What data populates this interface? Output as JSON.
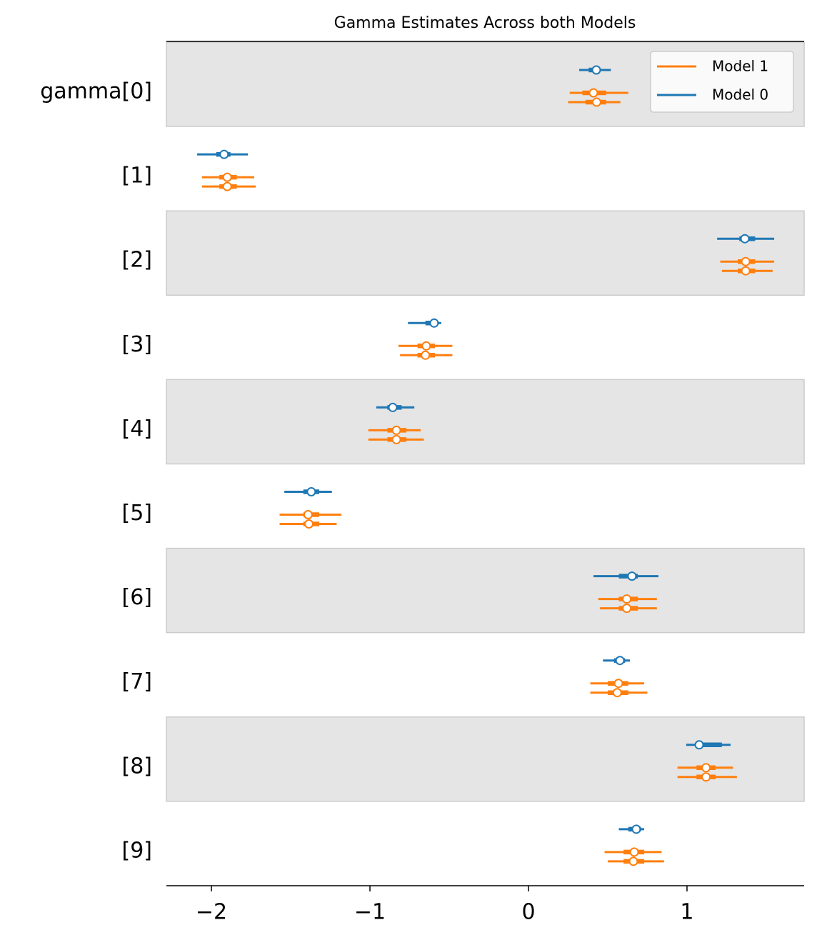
{
  "chart_data": {
    "type": "forest",
    "title": "Gamma Estimates Across both Models",
    "categories": [
      "gamma[0]",
      "[1]",
      "[2]",
      "[3]",
      "[4]",
      "[5]",
      "[6]",
      "[7]",
      "[8]",
      "[9]"
    ],
    "xlim": [
      -2.284,
      1.739
    ],
    "xticks": [
      {
        "value": -2,
        "label": "−2"
      },
      {
        "value": -1,
        "label": "−1"
      },
      0,
      1
    ],
    "legend": "upper right",
    "series": [
      {
        "name": "Model 0",
        "color": "#1f77b4",
        "chains": [
          {
            "median": [
              0.428,
              -1.92,
              1.365,
              -0.595,
              -0.856,
              -1.37,
              0.653,
              0.577,
              1.077,
              0.68
            ],
            "hdi_low": [
              0.32,
              -2.09,
              1.19,
              -0.76,
              -0.96,
              -1.54,
              0.41,
              0.47,
              0.995,
              0.57
            ],
            "hdi_high": [
              0.52,
              -1.77,
              1.55,
              -0.55,
              -0.72,
              -1.24,
              0.82,
              0.64,
              1.275,
              0.73
            ],
            "iqr_low": [
              0.38,
              -1.97,
              1.33,
              -0.65,
              -0.89,
              -1.42,
              0.57,
              0.54,
              1.06,
              0.63
            ],
            "iqr_high": [
              0.45,
              -1.88,
              1.43,
              -0.57,
              -0.8,
              -1.32,
              0.69,
              0.61,
              1.22,
              0.71
            ]
          }
        ]
      },
      {
        "name": "Model 1",
        "color": "#ff7f0e",
        "chains": [
          {
            "median": [
              0.41,
              -1.9,
              1.37,
              -0.645,
              -0.833,
              -1.39,
              0.62,
              0.568,
              1.12,
              0.667
            ],
            "hdi_low": [
              0.26,
              -2.06,
              1.21,
              -0.82,
              -1.01,
              -1.57,
              0.44,
              0.39,
              0.94,
              0.48
            ],
            "hdi_high": [
              0.63,
              -1.73,
              1.55,
              -0.48,
              -0.68,
              -1.18,
              0.81,
              0.73,
              1.29,
              0.84
            ],
            "iqr_low": [
              0.34,
              -1.95,
              1.32,
              -0.7,
              -0.89,
              -1.42,
              0.57,
              0.5,
              1.06,
              0.6
            ],
            "iqr_high": [
              0.49,
              -1.84,
              1.43,
              -0.59,
              -0.77,
              -1.32,
              0.69,
              0.63,
              1.18,
              0.73
            ]
          },
          {
            "median": [
              0.43,
              -1.9,
              1.37,
              -0.65,
              -0.833,
              -1.385,
              0.62,
              0.56,
              1.12,
              0.662
            ],
            "hdi_low": [
              0.25,
              -2.06,
              1.22,
              -0.81,
              -1.01,
              -1.57,
              0.45,
              0.39,
              0.94,
              0.5
            ],
            "hdi_high": [
              0.58,
              -1.72,
              1.54,
              -0.48,
              -0.66,
              -1.21,
              0.81,
              0.75,
              1.315,
              0.855
            ],
            "iqr_low": [
              0.36,
              -1.95,
              1.32,
              -0.7,
              -0.89,
              -1.42,
              0.57,
              0.5,
              1.06,
              0.6
            ],
            "iqr_high": [
              0.49,
              -1.84,
              1.43,
              -0.59,
              -0.77,
              -1.32,
              0.69,
              0.63,
              1.18,
              0.73
            ]
          }
        ]
      }
    ]
  }
}
